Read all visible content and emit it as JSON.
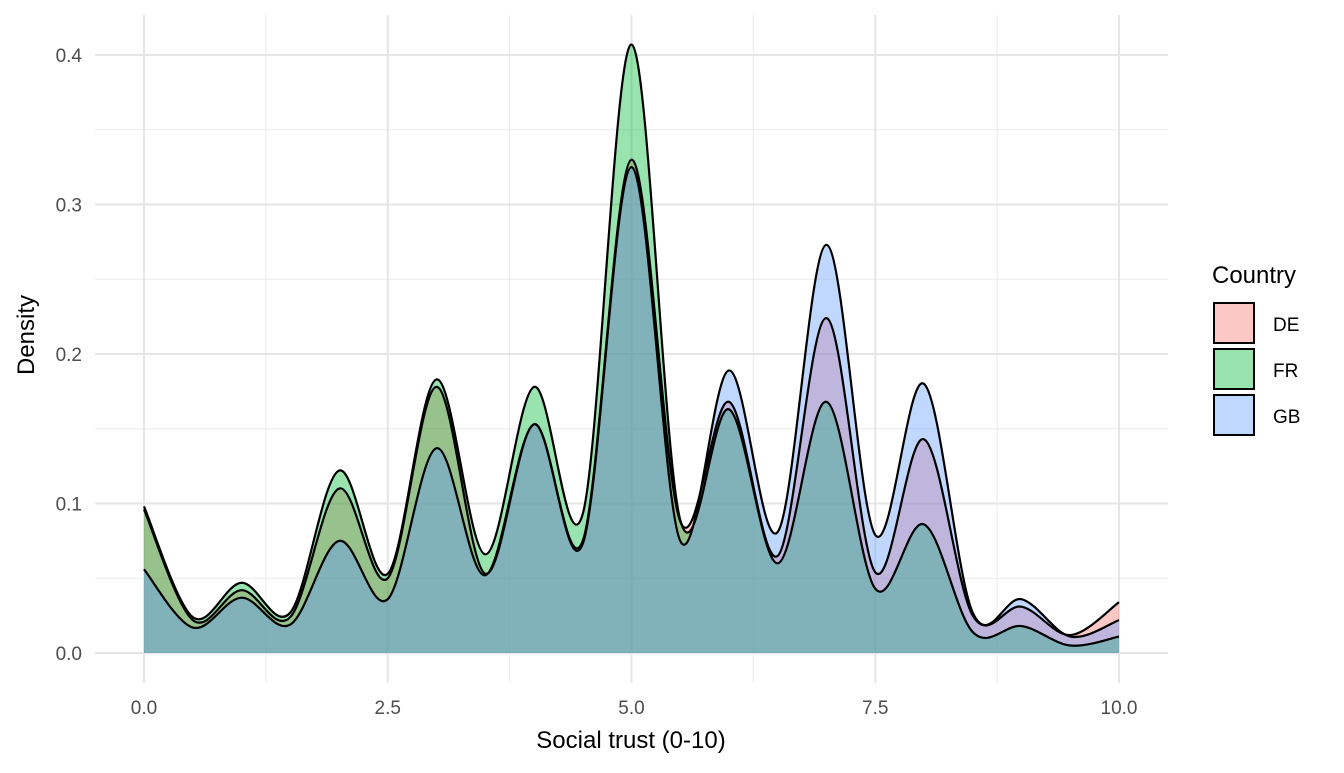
{
  "chart_data": {
    "type": "area",
    "title": "",
    "xlabel": "Social trust (0-10)",
    "ylabel": "Density",
    "xlim": [
      0,
      10
    ],
    "ylim": [
      0,
      0.4
    ],
    "grid": true,
    "x_ticks": [
      "0.0",
      "2.5",
      "5.0",
      "7.5",
      "10.0"
    ],
    "y_ticks": [
      "0.0",
      "0.1",
      "0.2",
      "0.3",
      "0.4"
    ],
    "legend": {
      "title": "Country",
      "placement": "right"
    },
    "x": [
      0,
      0.5,
      1,
      1.5,
      2,
      2.5,
      3,
      3.5,
      4,
      4.5,
      5,
      5.5,
      6,
      6.5,
      7,
      7.5,
      8,
      8.5,
      9,
      9.5,
      10
    ],
    "series": [
      {
        "name": "DE",
        "color": "#F8766D",
        "values": [
          0.096,
          0.022,
          0.042,
          0.024,
          0.11,
          0.05,
          0.178,
          0.053,
          0.153,
          0.075,
          0.33,
          0.088,
          0.168,
          0.065,
          0.224,
          0.054,
          0.143,
          0.025,
          0.031,
          0.012,
          0.034
        ]
      },
      {
        "name": "FR",
        "color": "#00BA38",
        "values": [
          0.098,
          0.024,
          0.047,
          0.027,
          0.122,
          0.053,
          0.183,
          0.066,
          0.178,
          0.093,
          0.407,
          0.089,
          0.163,
          0.06,
          0.168,
          0.043,
          0.086,
          0.014,
          0.018,
          0.005,
          0.011
        ]
      },
      {
        "name": "GB",
        "color": "#619CFF",
        "values": [
          0.056,
          0.017,
          0.037,
          0.019,
          0.075,
          0.036,
          0.137,
          0.052,
          0.153,
          0.073,
          0.325,
          0.075,
          0.189,
          0.081,
          0.273,
          0.079,
          0.18,
          0.027,
          0.036,
          0.011,
          0.022
        ]
      }
    ]
  }
}
